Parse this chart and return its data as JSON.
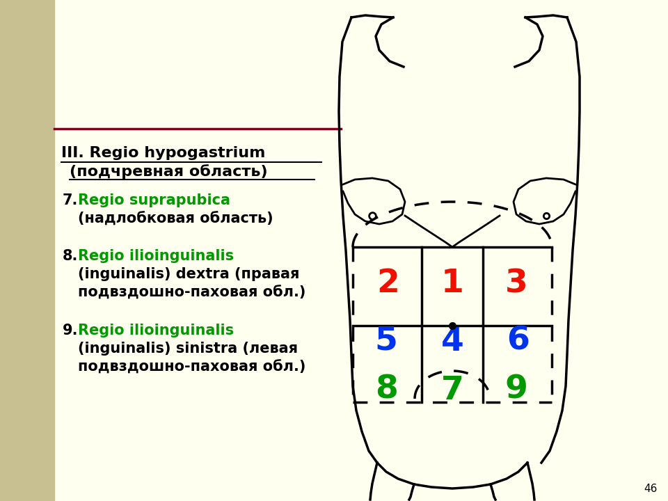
{
  "bg_color": "#FFFFF0",
  "sidebar_color": "#C8C090",
  "title_line1": "III. Regio hypogastrium",
  "title_line2": "(подчревная область)",
  "item7_latin": "Regio suprapubica",
  "item7_ru": "(надлобковая область)",
  "item8_latin": "Regio ilioinguinalis",
  "item8_ru1": "(inguinalis) dextra (правая",
  "item8_ru2": "подвздошно-паховая обл.)",
  "item9_latin": "Regio ilioinguinalis",
  "item9_ru1": "(inguinalis) sinistra (левая",
  "item9_ru2": "подвздошно-паховая обл.)",
  "divider_color": "#800020",
  "green": "#009900",
  "red": "#EE1100",
  "blue": "#0033EE",
  "black": "#000000",
  "page_number": "46"
}
